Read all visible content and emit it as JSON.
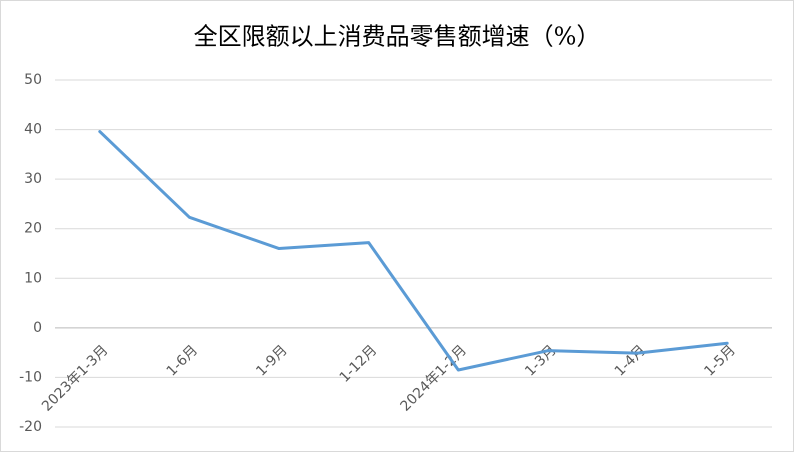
{
  "chart_data": {
    "type": "line",
    "title": "全区限额以上消费品零售额增速（%）",
    "categories": [
      "2023年1-3月",
      "1-6月",
      "1-9月",
      "1-12月",
      "2024年1-2月",
      "1-3月",
      "1-4月",
      "1-5月"
    ],
    "values": [
      39.6,
      22.3,
      16.0,
      17.2,
      -8.5,
      -4.6,
      -5.1,
      -3.1
    ],
    "color": "#5b9bd5",
    "ylim": [
      -20,
      50
    ],
    "yticks": [
      -20,
      -10,
      0,
      10,
      20,
      30,
      40,
      50
    ],
    "grid": true
  }
}
